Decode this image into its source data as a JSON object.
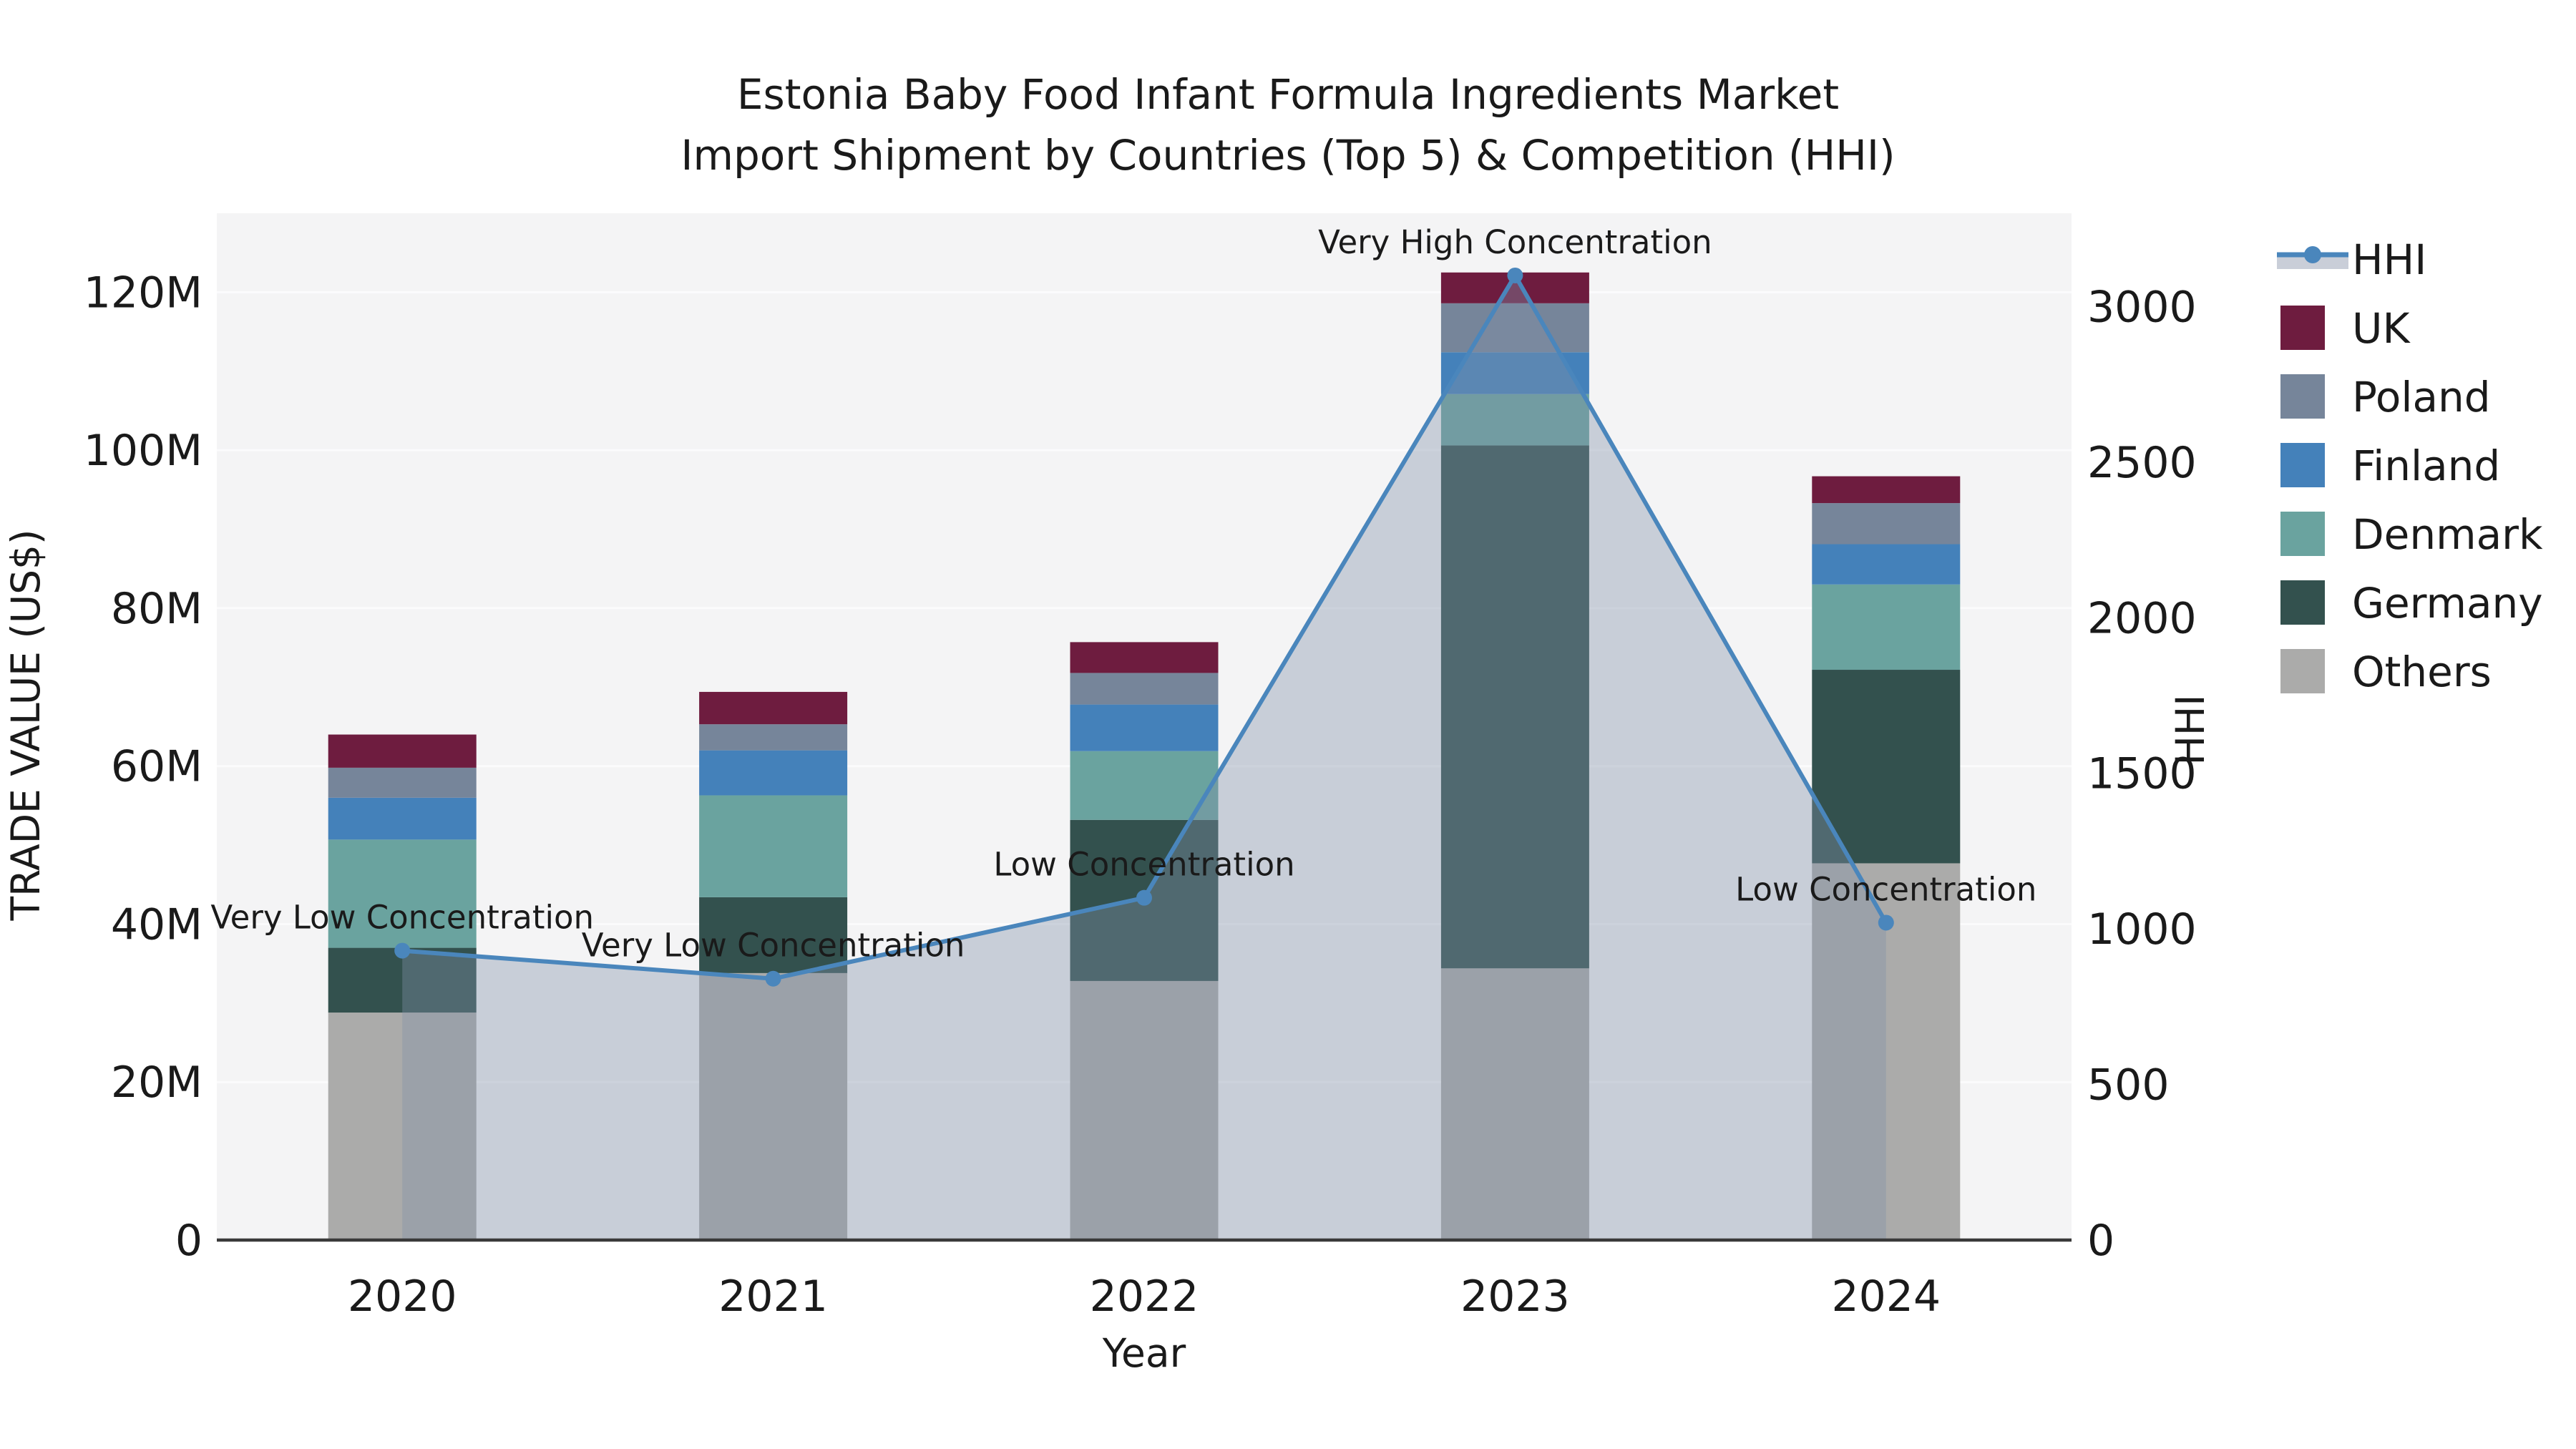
{
  "title": {
    "line1": "Estonia Baby Food Infant Formula Ingredients Market",
    "line2": "Import Shipment by Countries (Top 5) & Competition (HHI)"
  },
  "axes": {
    "x": {
      "label": "Year",
      "categories": [
        "2020",
        "2021",
        "2022",
        "2023",
        "2024"
      ]
    },
    "left": {
      "label": "TRADE VALUE (US$)",
      "max": 130,
      "ticks": [
        {
          "value": 0,
          "label": "0"
        },
        {
          "value": 20,
          "label": "20M"
        },
        {
          "value": 40,
          "label": "40M"
        },
        {
          "value": 60,
          "label": "60M"
        },
        {
          "value": 80,
          "label": "80M"
        },
        {
          "value": 100,
          "label": "100M"
        },
        {
          "value": 120,
          "label": "120M"
        }
      ]
    },
    "right": {
      "label": "HHI",
      "max": 3300,
      "ticks": [
        {
          "value": 0,
          "label": "0"
        },
        {
          "value": 500,
          "label": "500"
        },
        {
          "value": 1000,
          "label": "1000"
        },
        {
          "value": 1500,
          "label": "1500"
        },
        {
          "value": 2000,
          "label": "2000"
        },
        {
          "value": 2500,
          "label": "2500"
        },
        {
          "value": 3000,
          "label": "3000"
        }
      ]
    }
  },
  "chart_data": {
    "type": "bar",
    "subtype": "stacked-bar-with-line-area",
    "title": "Estonia Baby Food Infant Formula Ingredients Market Import Shipment by Countries (Top 5) & Competition (HHI)",
    "xlabel": "Year",
    "ylabel_left": "TRADE VALUE (US$)",
    "ylabel_right": "HHI",
    "categories": [
      "2020",
      "2021",
      "2022",
      "2023",
      "2024"
    ],
    "units": "millions US$",
    "ylim_left": [
      0,
      130
    ],
    "ylim_right": [
      0,
      3300
    ],
    "grid": "horizontal-left-axis",
    "legend_position": "outside-top-right",
    "series": [
      {
        "name": "Others",
        "color": "#ababaa",
        "values": [
          28.8,
          33.8,
          32.8,
          34.4,
          47.7
        ]
      },
      {
        "name": "Germany",
        "color": "#33514e",
        "values": [
          8.2,
          9.6,
          20.4,
          66.2,
          24.5
        ]
      },
      {
        "name": "Denmark",
        "color": "#6aa39f",
        "values": [
          13.7,
          12.9,
          8.7,
          6.5,
          10.8
        ]
      },
      {
        "name": "Finland",
        "color": "#4481ba",
        "values": [
          5.3,
          5.7,
          5.9,
          5.3,
          5.1
        ]
      },
      {
        "name": "Poland",
        "color": "#76859a",
        "values": [
          3.8,
          3.3,
          4.0,
          6.2,
          5.2
        ]
      },
      {
        "name": "UK",
        "color": "#6e1c3f",
        "values": [
          4.2,
          4.1,
          3.9,
          3.9,
          3.4
        ]
      }
    ],
    "totals": [
      64.0,
      69.4,
      75.7,
      122.5,
      96.7
    ],
    "line": {
      "name": "HHI",
      "color": "#4a86bc",
      "area_fill": "rgba(130,144,168,0.38)",
      "values": [
        930,
        840,
        1100,
        3100,
        1020
      ]
    },
    "annotations": [
      {
        "category": "2020",
        "text": "Very Low Concentration"
      },
      {
        "category": "2021",
        "text": "Very Low Concentration"
      },
      {
        "category": "2022",
        "text": "Low Concentration"
      },
      {
        "category": "2023",
        "text": "Very High Concentration"
      },
      {
        "category": "2024",
        "text": "Low Concentration"
      }
    ]
  },
  "legend": {
    "items": [
      {
        "label": "HHI",
        "type": "line-area",
        "color": "#4a86bc",
        "band_color": "#c9ced8"
      },
      {
        "label": "UK",
        "type": "patch",
        "color": "#6e1c3f"
      },
      {
        "label": "Poland",
        "type": "patch",
        "color": "#76859a"
      },
      {
        "label": "Finland",
        "type": "patch",
        "color": "#4481ba"
      },
      {
        "label": "Denmark",
        "type": "patch",
        "color": "#6aa39f"
      },
      {
        "label": "Germany",
        "type": "patch",
        "color": "#33514e"
      },
      {
        "label": "Others",
        "type": "patch",
        "color": "#ababaa"
      }
    ]
  },
  "style": {
    "plot_bg": "#f4f4f5",
    "grid_color": "#fbfbfc",
    "spine_color": "#3a3a3a",
    "text_color": "#1a1a1a"
  }
}
